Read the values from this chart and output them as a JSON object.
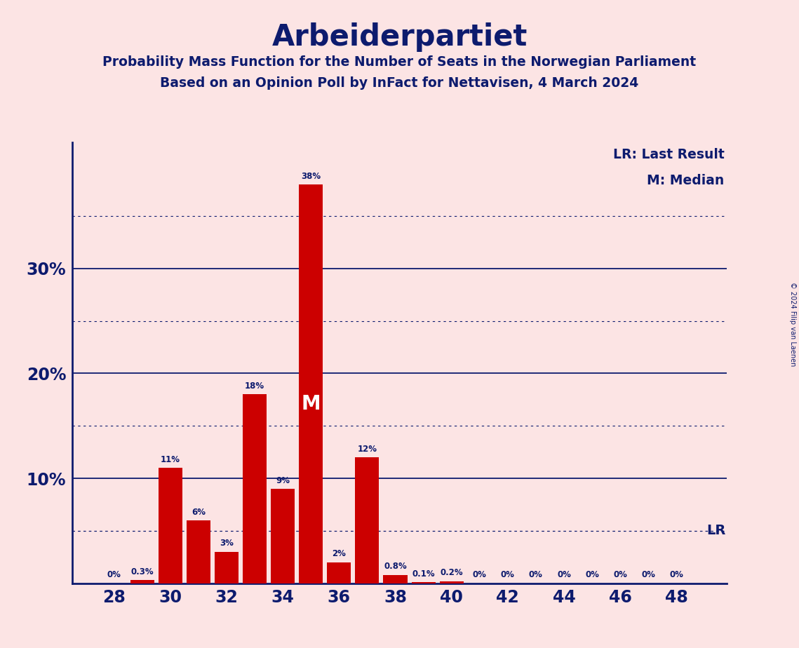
{
  "title": "Arbeiderpartiet",
  "subtitle1": "Probability Mass Function for the Number of Seats in the Norwegian Parliament",
  "subtitle2": "Based on an Opinion Poll by InFact for Nettavisen, 4 March 2024",
  "copyright": "© 2024 Filip van Laenen",
  "seats": [
    28,
    29,
    30,
    31,
    32,
    33,
    34,
    35,
    36,
    37,
    38,
    39,
    40,
    41,
    42,
    43,
    44,
    45,
    46,
    47,
    48
  ],
  "probabilities": [
    0.0,
    0.3,
    11.0,
    6.0,
    3.0,
    18.0,
    9.0,
    38.0,
    2.0,
    12.0,
    0.8,
    0.1,
    0.2,
    0.0,
    0.0,
    0.0,
    0.0,
    0.0,
    0.0,
    0.0,
    0.0
  ],
  "bar_color": "#cc0000",
  "bg_color": "#fce4e4",
  "text_color": "#0d1b6e",
  "grid_color": "#0d1b6e",
  "median_seat": 35,
  "lr_value": 5.0,
  "lr_label": "LR",
  "median_label": "M",
  "legend_lr": "LR: Last Result",
  "legend_m": "M: Median",
  "ylim": [
    0,
    42
  ],
  "major_yticks": [
    10,
    20,
    30
  ],
  "minor_yticks": [
    5,
    15,
    25,
    35
  ],
  "xtick_positions": [
    28,
    30,
    32,
    34,
    36,
    38,
    40,
    42,
    44,
    46,
    48
  ],
  "xlim_left": 26.5,
  "xlim_right": 49.8
}
